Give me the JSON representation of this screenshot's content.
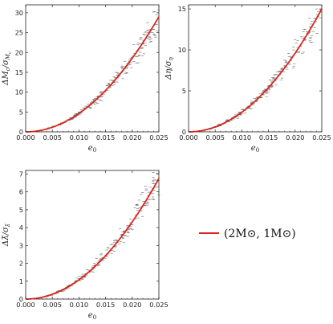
{
  "chart_data": [
    {
      "type": "scatter",
      "panel": "top-left",
      "xlabel": "e",
      "xlabel_sub": "0",
      "ylabel": "ΔM",
      "ylabel_sub": "c",
      "ylabel_den": "σ",
      "ylabel_den_sub": "M",
      "ylabel_den_subsub": "c",
      "xlim": [
        0,
        0.025
      ],
      "ylim": [
        0,
        32
      ],
      "x_ticks": [
        "0.000",
        "0.005",
        "0.010",
        "0.015",
        "0.020",
        "0.025"
      ],
      "y_ticks": [
        "0",
        "5",
        "10",
        "15",
        "20",
        "25",
        "30"
      ],
      "y_tick_values": [
        0,
        5,
        10,
        15,
        20,
        25,
        30
      ],
      "fit": {
        "x": [
          0.0,
          0.005,
          0.01,
          0.015,
          0.02,
          0.025
        ],
        "y": [
          0.0,
          1.2,
          4.6,
          10.4,
          18.6,
          29.0
        ]
      },
      "scatter_spread": 0.07,
      "scatter_n": 220,
      "series": [
        {
          "values": "fit",
          "color": "#d8261c"
        }
      ]
    },
    {
      "type": "scatter",
      "panel": "top-right",
      "xlabel": "e",
      "xlabel_sub": "0",
      "ylabel": "Δη",
      "ylabel_sub": "",
      "ylabel_den": "σ",
      "ylabel_den_sub": "η",
      "ylabel_den_subsub": "",
      "xlim": [
        0,
        0.025
      ],
      "ylim": [
        0,
        15.5
      ],
      "x_ticks": [
        "0.000",
        "0.005",
        "0.010",
        "0.015",
        "0.020",
        "0.025"
      ],
      "y_ticks": [
        "0",
        "5",
        "10",
        "15"
      ],
      "y_tick_values": [
        0,
        5,
        10,
        15
      ],
      "fit": {
        "x": [
          0.0,
          0.005,
          0.01,
          0.015,
          0.02,
          0.025
        ],
        "y": [
          0.0,
          0.6,
          2.4,
          5.4,
          9.6,
          15.0
        ]
      },
      "scatter_spread": 0.07,
      "scatter_n": 220,
      "series": [
        {
          "values": "fit",
          "color": "#d8261c"
        }
      ]
    },
    {
      "type": "scatter",
      "panel": "bottom-left",
      "xlabel": "e",
      "xlabel_sub": "0",
      "ylabel": "Δλ̃",
      "ylabel_sub": "",
      "ylabel_den": "σ",
      "ylabel_den_sub": "λ̃",
      "ylabel_den_subsub": "",
      "xlim": [
        0,
        0.025
      ],
      "ylim": [
        0,
        7.2
      ],
      "x_ticks": [
        "0.000",
        "0.005",
        "0.010",
        "0.015",
        "0.020",
        "0.025"
      ],
      "y_ticks": [
        "0",
        "1",
        "2",
        "3",
        "4",
        "5",
        "6",
        "7"
      ],
      "y_tick_values": [
        0,
        1,
        2,
        3,
        4,
        5,
        6,
        7
      ],
      "fit": {
        "x": [
          0.0,
          0.005,
          0.01,
          0.015,
          0.02,
          0.025
        ],
        "y": [
          0.0,
          0.28,
          1.1,
          2.45,
          4.3,
          6.75
        ]
      },
      "scatter_spread": 0.07,
      "scatter_n": 220,
      "series": [
        {
          "values": "fit",
          "color": "#d8261c"
        }
      ]
    }
  ],
  "legend": {
    "label": "(2M⊙, 1M⊙)",
    "color": "#d8261c"
  },
  "colors": {
    "fit_line": "#d8261c",
    "scatter": "#333333",
    "axis": "#222222"
  }
}
